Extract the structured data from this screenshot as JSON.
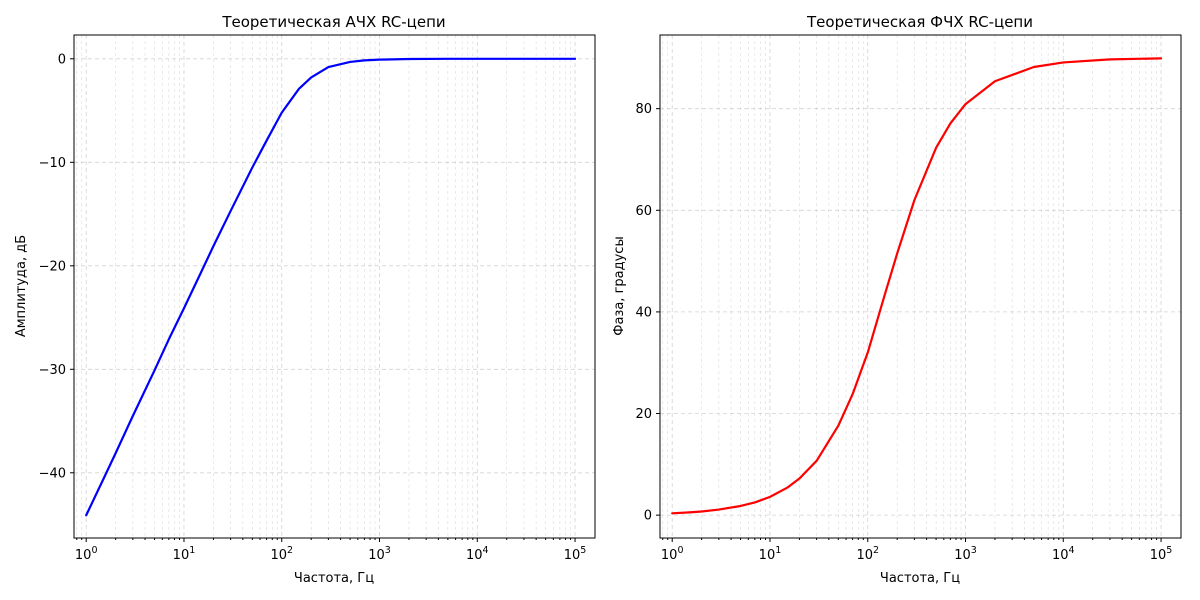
{
  "chart_data": [
    {
      "type": "line",
      "title": "Теоретическая АЧХ RC-цепи",
      "xlabel": "Частота, Гц",
      "ylabel": "Амплитуда, дБ",
      "xscale": "log",
      "xlim": [
        0.75,
        160000
      ],
      "ylim": [
        -46.3,
        2.3
      ],
      "x_ticks": [
        1,
        10,
        100,
        1000,
        10000,
        100000
      ],
      "x_tick_labels": [
        {
          "base": "10",
          "exp": "0"
        },
        {
          "base": "10",
          "exp": "1"
        },
        {
          "base": "10",
          "exp": "2"
        },
        {
          "base": "10",
          "exp": "3"
        },
        {
          "base": "10",
          "exp": "4"
        },
        {
          "base": "10",
          "exp": "5"
        }
      ],
      "y_ticks": [
        0,
        -10,
        -20,
        -30,
        -40
      ],
      "y_tick_labels": [
        "0",
        "−10",
        "−20",
        "−30",
        "−40"
      ],
      "grid": true,
      "series": [
        {
          "color": "#0000ff",
          "x": [
            1,
            1.5,
            2,
            3,
            5,
            7,
            10,
            15,
            20,
            30,
            50,
            70,
            100,
            150,
            200,
            300,
            500,
            700,
            1000,
            2000,
            5000,
            10000,
            30000,
            100000
          ],
          "y": [
            -44.1,
            -40.6,
            -38.1,
            -34.5,
            -30.1,
            -27.1,
            -24.1,
            -20.6,
            -18.1,
            -14.7,
            -10.5,
            -7.9,
            -5.2,
            -2.9,
            -1.8,
            -0.8,
            -0.3,
            -0.15,
            -0.08,
            -0.02,
            0,
            0,
            0,
            0
          ]
        }
      ]
    },
    {
      "type": "line",
      "title": "Теоретическая ФЧХ RC-цепи",
      "xlabel": "Частота, Гц",
      "ylabel": "Фаза, градусы",
      "xscale": "log",
      "xlim": [
        0.75,
        160000
      ],
      "ylim": [
        -4.5,
        94.5
      ],
      "x_ticks": [
        1,
        10,
        100,
        1000,
        10000,
        100000
      ],
      "x_tick_labels": [
        {
          "base": "10",
          "exp": "0"
        },
        {
          "base": "10",
          "exp": "1"
        },
        {
          "base": "10",
          "exp": "2"
        },
        {
          "base": "10",
          "exp": "3"
        },
        {
          "base": "10",
          "exp": "4"
        },
        {
          "base": "10",
          "exp": "5"
        }
      ],
      "y_ticks": [
        0,
        20,
        40,
        60,
        80
      ],
      "y_tick_labels": [
        "0",
        "20",
        "40",
        "60",
        "80"
      ],
      "grid": true,
      "series": [
        {
          "color": "#ff0000",
          "x": [
            1,
            1.5,
            2,
            3,
            5,
            7,
            10,
            15,
            20,
            30,
            50,
            70,
            100,
            150,
            200,
            300,
            500,
            700,
            1000,
            2000,
            5000,
            10000,
            30000,
            100000
          ],
          "y": [
            0.36,
            0.54,
            0.72,
            1.1,
            1.8,
            2.5,
            3.6,
            5.4,
            7.2,
            10.7,
            17.6,
            23.8,
            32.0,
            43.5,
            51.5,
            62.0,
            72.3,
            77.1,
            80.9,
            85.4,
            88.2,
            89.1,
            89.7,
            89.9
          ]
        }
      ]
    }
  ]
}
